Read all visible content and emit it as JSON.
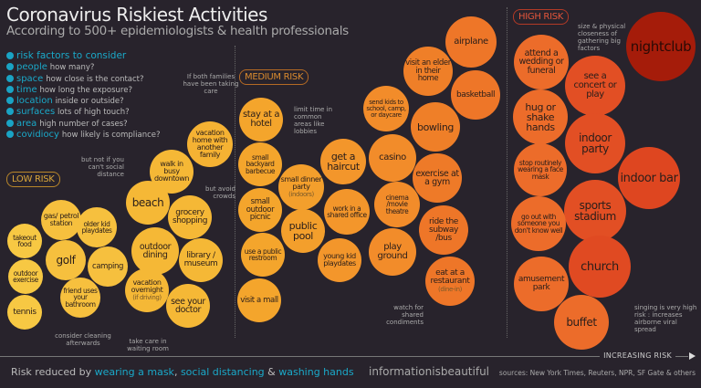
{
  "header": {
    "title": "Coronavirus Riskiest Activities",
    "subtitle": "According to 500+ epidemiologists & health professionals"
  },
  "risk_factors": {
    "heading": "risk factors to consider",
    "items": [
      {
        "key": "people",
        "desc": "how many?"
      },
      {
        "key": "space",
        "desc": "how close is the contact?"
      },
      {
        "key": "time",
        "desc": "how long the exposure?"
      },
      {
        "key": "location",
        "desc": "inside or outside?"
      },
      {
        "key": "surfaces",
        "desc": "lots of high touch?"
      },
      {
        "key": "area",
        "desc": "high number of cases?"
      },
      {
        "key": "covidiocy",
        "desc": "how likely is compliance?"
      }
    ]
  },
  "categories": {
    "low": {
      "label": "LOW RISK",
      "color": "#d9a63a"
    },
    "medium": {
      "label": "MEDIUM RISK",
      "color": "#d98a2e"
    },
    "high": {
      "label": "HIGH RISK",
      "color": "#c8432a"
    }
  },
  "bubbles": [
    {
      "label": "takeout food",
      "color": "#f7c843"
    },
    {
      "label": "outdoor exercise",
      "color": "#f7c843"
    },
    {
      "label": "tennis",
      "color": "#f7c843"
    },
    {
      "label": "gas/ petrol station",
      "color": "#f6c03e"
    },
    {
      "label": "golf",
      "color": "#f6c03e"
    },
    {
      "label": "friend uses your bathroom",
      "color": "#f6c03e"
    },
    {
      "label": "older kid playdates",
      "color": "#f6c03e"
    },
    {
      "label": "camping",
      "color": "#f6c03e"
    },
    {
      "label": "beach",
      "color": "#f5b836"
    },
    {
      "label": "outdoor dining",
      "color": "#f5b836"
    },
    {
      "label": "vacation overnight",
      "sub": "(if driving)",
      "color": "#f5b836"
    },
    {
      "label": "grocery shopping",
      "color": "#f5b836"
    },
    {
      "label": "library / museum",
      "color": "#f5b836"
    },
    {
      "label": "see your doctor",
      "color": "#f5b836"
    },
    {
      "label": "walk in busy downtown",
      "color": "#f5b836"
    },
    {
      "label": "vacation home with another family",
      "color": "#f5b233"
    },
    {
      "label": "stay at a hotel",
      "color": "#f4a52c"
    },
    {
      "label": "small backyard barbecue",
      "color": "#f4a52c"
    },
    {
      "label": "small outdoor picnic",
      "color": "#f4a52c"
    },
    {
      "label": "use a public restroom",
      "color": "#f4a52c"
    },
    {
      "label": "visit a mall",
      "color": "#f4a52c"
    },
    {
      "label": "small dinner party",
      "sub": "(indoors)",
      "color": "#f39f2c"
    },
    {
      "label": "public pool",
      "color": "#f39f2c"
    },
    {
      "label": "get a haircut",
      "color": "#f3962b"
    },
    {
      "label": "work in a shared office",
      "color": "#f3962b"
    },
    {
      "label": "young kid playdates",
      "color": "#f3962b"
    },
    {
      "label": "send kids to school, camp, or daycare",
      "color": "#f28c2a"
    },
    {
      "label": "casino",
      "color": "#f28c2a"
    },
    {
      "label": "cinema /movie theatre",
      "color": "#f28c2a"
    },
    {
      "label": "play ground",
      "color": "#f28c2a"
    },
    {
      "label": "visit an elder in their home",
      "color": "#ef7f28"
    },
    {
      "label": "bowling",
      "color": "#ef7f28"
    },
    {
      "label": "exercise at a gym",
      "color": "#ee7a28"
    },
    {
      "label": "ride the subway /bus",
      "color": "#ee7628"
    },
    {
      "label": "eat at a restaurant",
      "sub": "(dine-in)",
      "color": "#ee7628"
    },
    {
      "label": "airplane",
      "color": "#ee7628"
    },
    {
      "label": "basketball",
      "color": "#ee7628"
    },
    {
      "label": "attend a wedding or funeral",
      "color": "#ec6c2a"
    },
    {
      "label": "see a concert or play",
      "color": "#e24f24"
    },
    {
      "label": "hug or shake hands",
      "color": "#ec6c2a"
    },
    {
      "label": "indoor party",
      "color": "#e24f24"
    },
    {
      "label": "stop routinely wearing a face mask",
      "color": "#ec6c2a"
    },
    {
      "label": "indoor bar",
      "color": "#de4620"
    },
    {
      "label": "sports stadium",
      "color": "#e24f24"
    },
    {
      "label": "go out with someone you don't know well",
      "color": "#ec6c2a"
    },
    {
      "label": "church",
      "color": "#e04a22"
    },
    {
      "label": "amusement park",
      "color": "#ec6c2a"
    },
    {
      "label": "buffet",
      "color": "#ec6c2a"
    },
    {
      "label": "nightclub",
      "color": "#a51c0a"
    }
  ],
  "notes": [
    "If both families have been taking care",
    "but not if you can't social distance",
    "but avoid crowds",
    "consider cleaning afterwards",
    "take care in waiting room",
    "limit time in common areas like lobbies",
    "watch for shared condiments",
    "size & physical closeness of gathering big factors",
    "singing is very high risk : increases airborne viral spread"
  ],
  "axis": {
    "label": "INCREASING RISK"
  },
  "footer": {
    "prefix": "Risk reduced by ",
    "mask": "wearing a mask",
    "sep1": ", ",
    "distancing": "social distancing",
    "sep2": " & ",
    "hands": "washing hands",
    "brand": "informationisbeautiful",
    "sources": "sources: New York Times, Reuters, NPR, SF Gate & others"
  }
}
